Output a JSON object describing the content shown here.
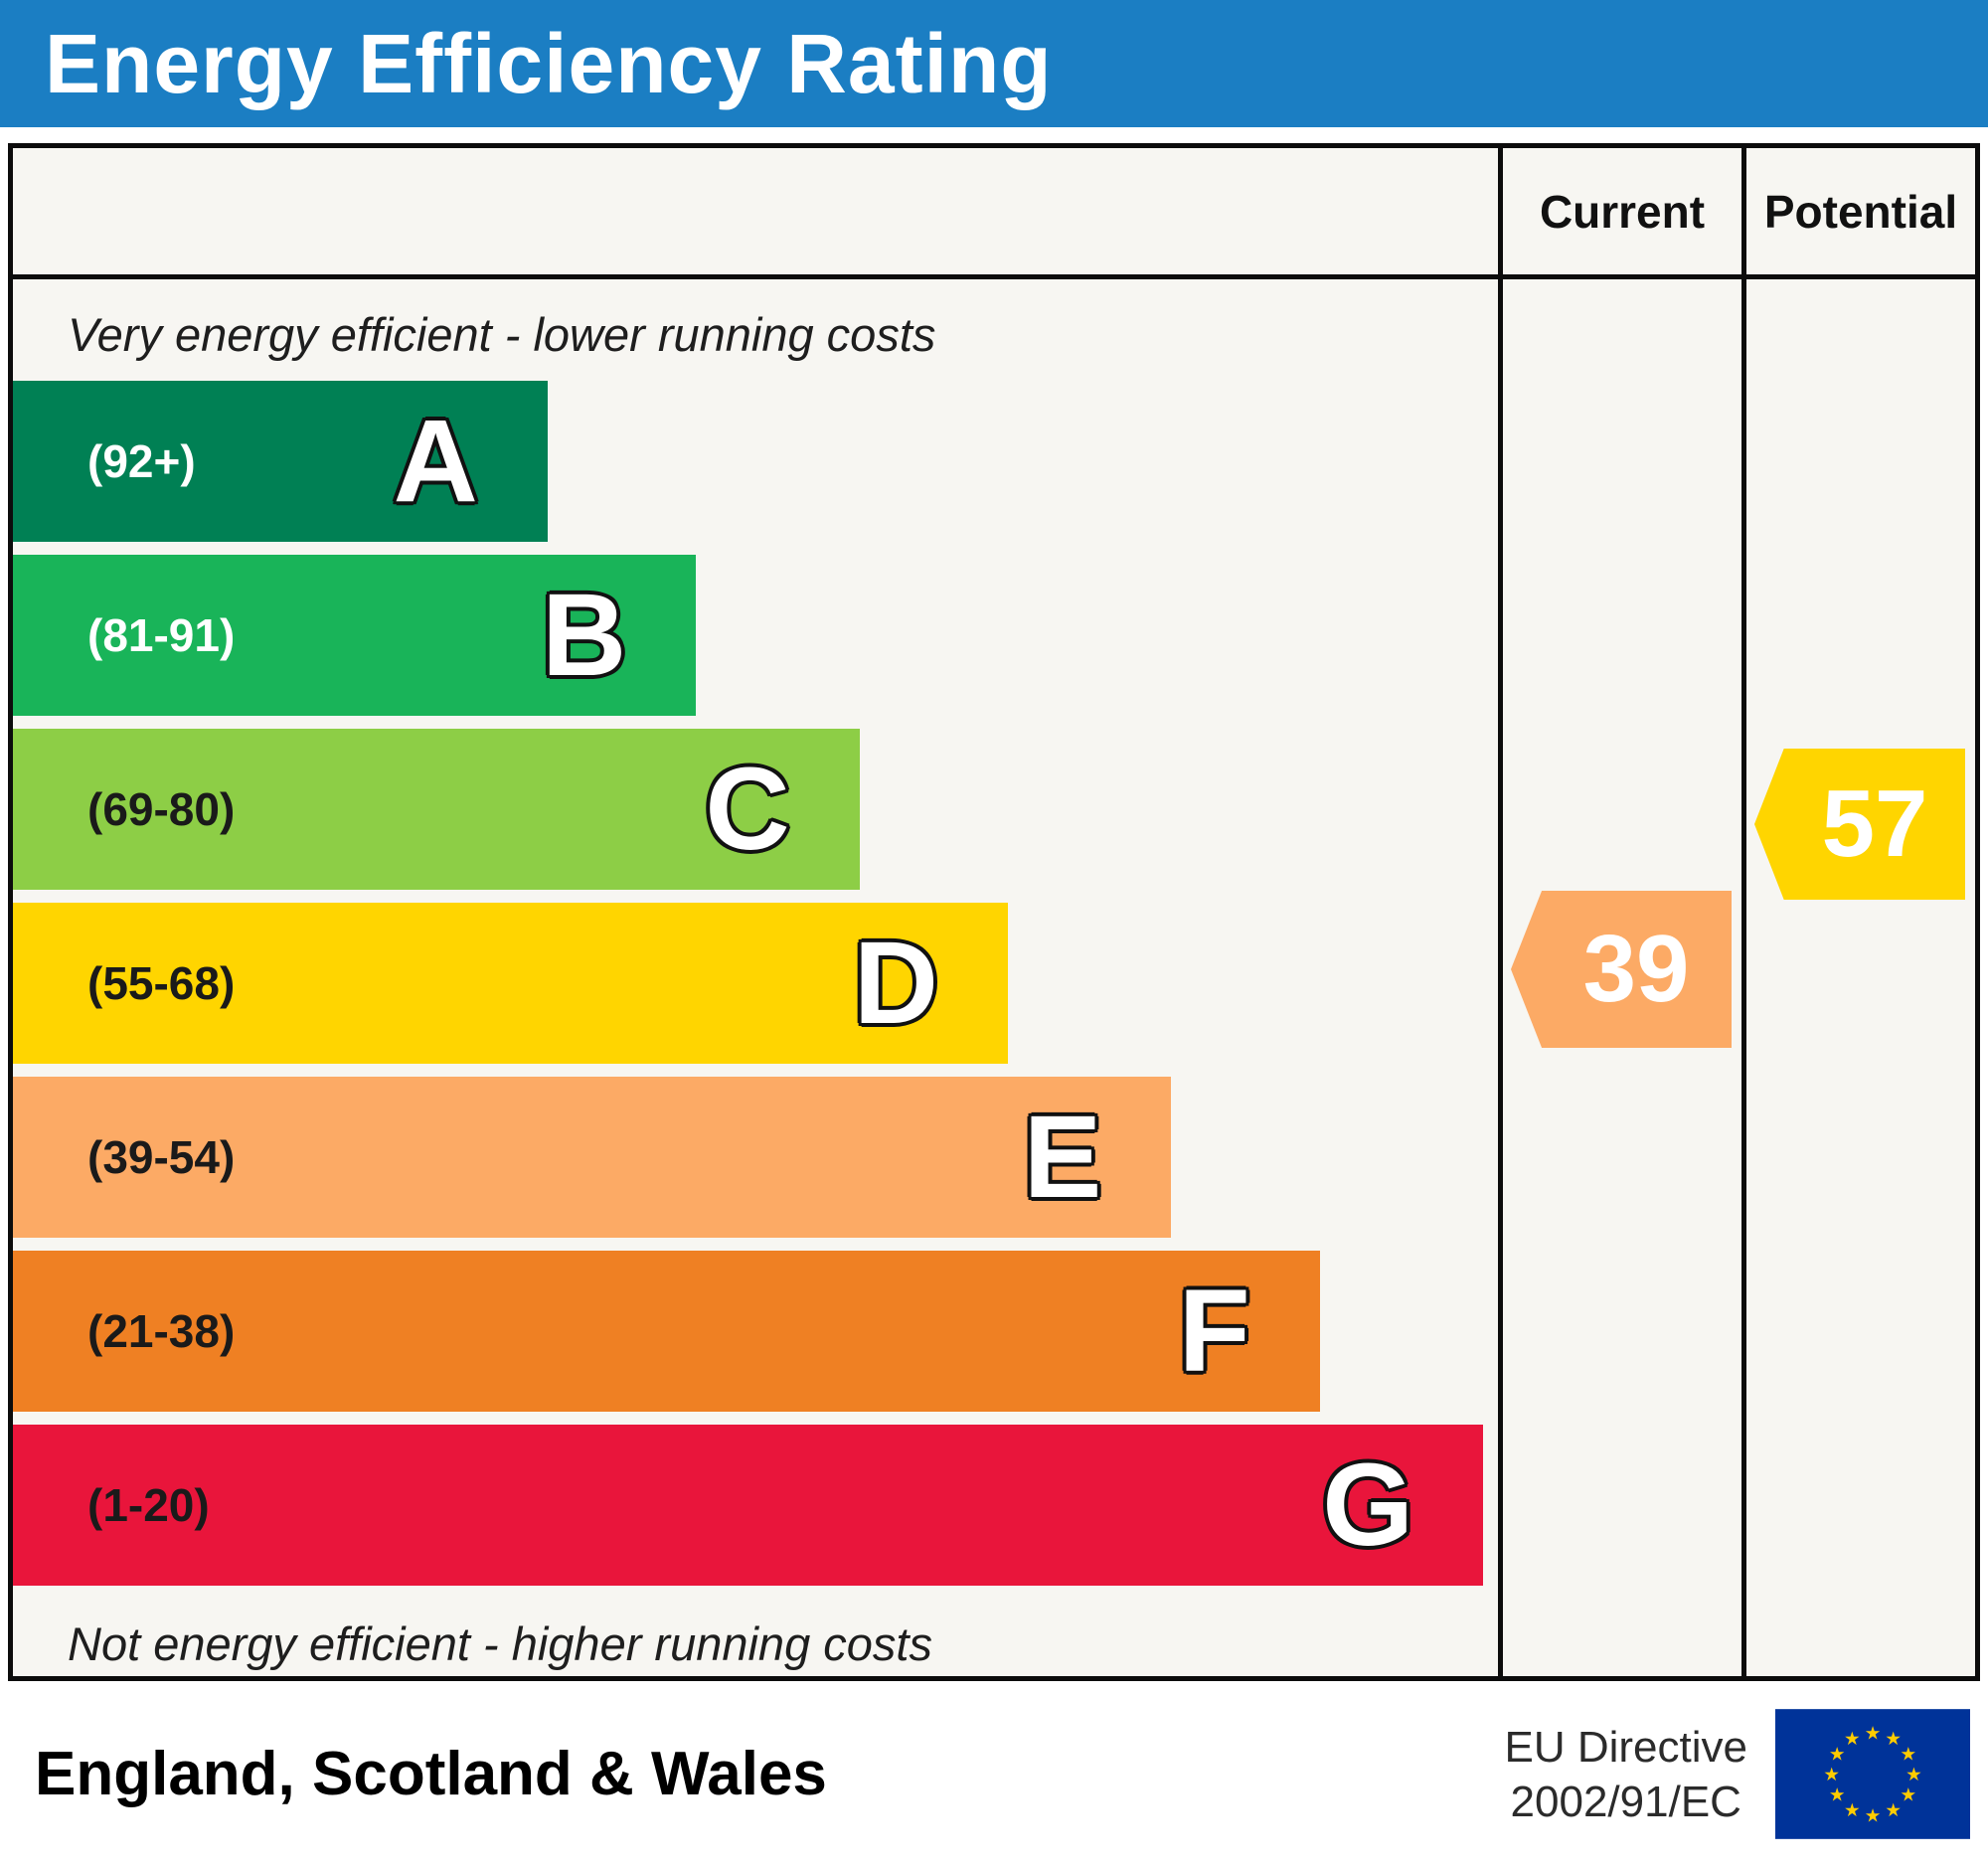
{
  "title": "Energy Efficiency Rating",
  "columns": {
    "current": "Current",
    "potential": "Potential"
  },
  "notes": {
    "top": "Very energy efficient - lower running costs",
    "bottom": "Not energy efficient - higher running costs"
  },
  "footer": {
    "region": "England, Scotland & Wales",
    "directive_line1": "EU Directive",
    "directive_line2": "2002/91/EC",
    "flag_icon": "eu-flag"
  },
  "colors": {
    "header_bg": "#1b7ec3",
    "border": "#0c0c0c",
    "chart_bg": "#f7f6f2"
  },
  "chart_data": {
    "type": "bar",
    "title": "Energy Efficiency Rating",
    "legend_position": "none",
    "grid": false,
    "bands": [
      {
        "letter": "A",
        "range_label": "(92+)",
        "color": "#008054",
        "label_color": "#ffffff",
        "width_pct": 36
      },
      {
        "letter": "B",
        "range_label": "(81-91)",
        "color": "#19b459",
        "label_color": "#ffffff",
        "width_pct": 46
      },
      {
        "letter": "C",
        "range_label": "(69-80)",
        "color": "#8dce46",
        "label_color": "#1a1a1a",
        "width_pct": 57
      },
      {
        "letter": "D",
        "range_label": "(55-68)",
        "color": "#ffd500",
        "label_color": "#1a1a1a",
        "width_pct": 67
      },
      {
        "letter": "E",
        "range_label": "(39-54)",
        "color": "#fcaa65",
        "label_color": "#1a1a1a",
        "width_pct": 78
      },
      {
        "letter": "F",
        "range_label": "(21-38)",
        "color": "#ef8023",
        "label_color": "#1a1a1a",
        "width_pct": 88
      },
      {
        "letter": "G",
        "range_label": "(1-20)",
        "color": "#e9153b",
        "label_color": "#1a1a1a",
        "width_pct": 99
      }
    ],
    "current": {
      "value": 39,
      "band": "E",
      "color": "#fcaa65"
    },
    "potential": {
      "value": 57,
      "band": "D",
      "color": "#ffd500"
    }
  }
}
